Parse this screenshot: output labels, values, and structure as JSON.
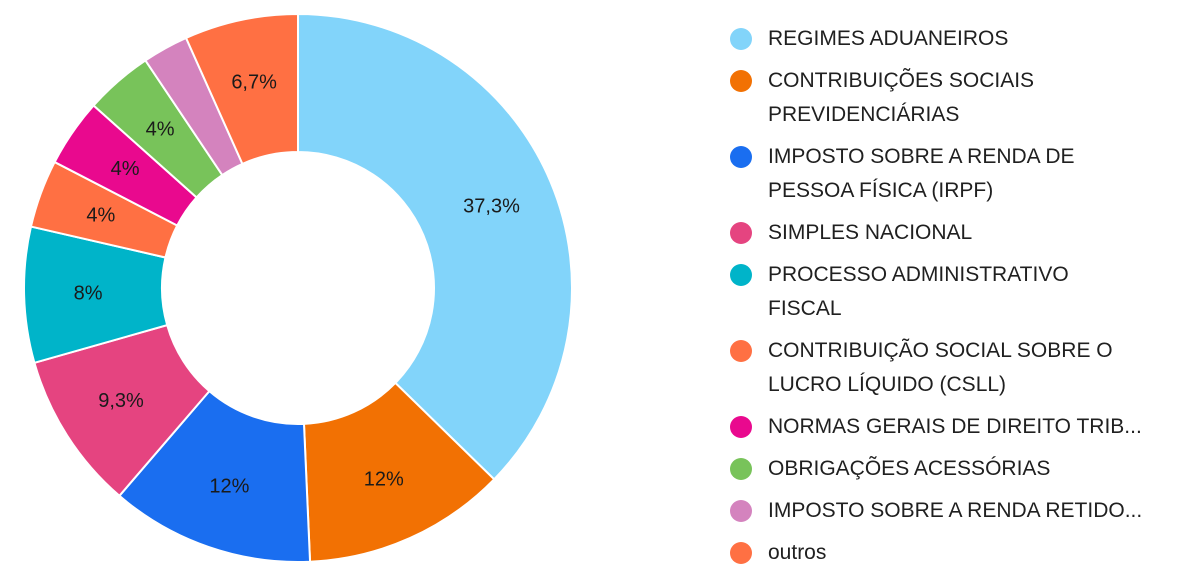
{
  "chart_data": {
    "type": "pie",
    "variant": "donut",
    "legend_position": "right",
    "categories": [
      "REGIMES ADUANEIROS",
      "CONTRIBUIÇÕES SOCIAIS\nPREVIDENCIÁRIAS",
      "IMPOSTO SOBRE A RENDA DE\nPESSOA FÍSICA (IRPF)",
      "SIMPLES NACIONAL",
      "PROCESSO ADMINISTRATIVO\nFISCAL",
      "CONTRIBUIÇÃO SOCIAL SOBRE O\nLUCRO LÍQUIDO (CSLL)",
      "NORMAS GERAIS DE DIREITO TRIB...",
      "OBRIGAÇÕES ACESSÓRIAS",
      "IMPOSTO SOBRE A RENDA RETIDO...",
      "outros"
    ],
    "values": [
      37.3,
      12,
      12,
      9.3,
      8,
      4,
      4,
      4,
      2.7,
      6.7
    ],
    "value_labels": [
      "37,3%",
      "12%",
      "12%",
      "9,3%",
      "8%",
      "4%",
      "4%",
      "4%",
      "",
      "6,7%"
    ],
    "colors": [
      "#82d4fa",
      "#f27103",
      "#1a6ef0",
      "#e54480",
      "#00b4c9",
      "#ff7043",
      "#e9098e",
      "#78c35a",
      "#d483be",
      "#ff7043"
    ]
  }
}
